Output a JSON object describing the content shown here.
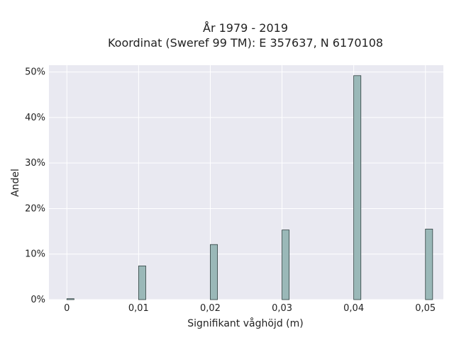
{
  "chart_data": {
    "type": "bar",
    "title": "År 1979 - 2019",
    "subtitle": "Koordinat (Sweref 99 TM): E 357637, N 6170108",
    "xlabel": "Signifikant våghöjd (m)",
    "ylabel": "Andel",
    "x": [
      0.0,
      0.01,
      0.02,
      0.03,
      0.04,
      0.05
    ],
    "values": [
      0.2,
      7.4,
      12.1,
      15.3,
      49.2,
      15.5
    ],
    "xlim": [
      -0.0025,
      0.0525
    ],
    "ylim": [
      0,
      51.5
    ],
    "xticks": [
      {
        "value": 0.0,
        "label": "0"
      },
      {
        "value": 0.01,
        "label": "0,01"
      },
      {
        "value": 0.02,
        "label": "0,02"
      },
      {
        "value": 0.03,
        "label": "0,03"
      },
      {
        "value": 0.04,
        "label": "0,04"
      },
      {
        "value": 0.05,
        "label": "0,05"
      }
    ],
    "yticks": [
      {
        "value": 0,
        "label": "0%"
      },
      {
        "value": 10,
        "label": "10%"
      },
      {
        "value": 20,
        "label": "20%"
      },
      {
        "value": 30,
        "label": "30%"
      },
      {
        "value": 40,
        "label": "40%"
      },
      {
        "value": 50,
        "label": "50%"
      }
    ],
    "grid": true,
    "colors": {
      "bar": "#9ab8b8",
      "bar_edge": "#2f3f3f",
      "plot_bg": "#e9e9f1",
      "grid": "#ffffff"
    }
  }
}
